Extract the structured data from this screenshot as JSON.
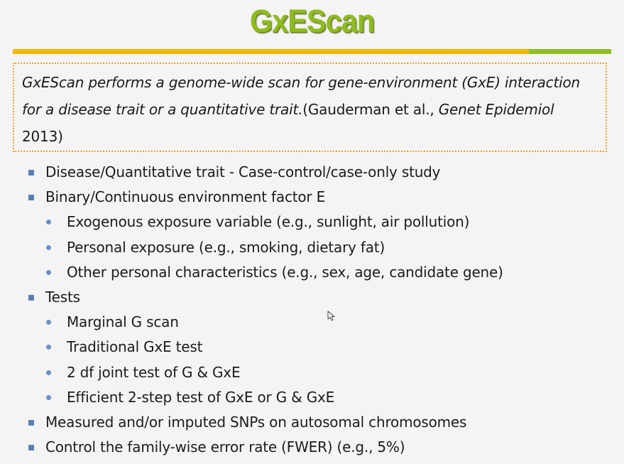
{
  "title": "GxEScan",
  "intro": {
    "italic_part": "GxEScan performs a genome-wide scan for gene-environment (GxE) interaction for a disease trait or a quantitative trait.",
    "citation_pre": "(Gauderman et al., ",
    "citation_journal": "Genet Epidemiol",
    "citation_post": " 2013)"
  },
  "bullets": [
    {
      "level": 1,
      "text": "Disease/Quantitative trait - Case-control/case-only study"
    },
    {
      "level": 1,
      "text": "Binary/Continuous environment factor E"
    },
    {
      "level": 2,
      "text": "Exogenous exposure variable (e.g., sunlight, air pollution)"
    },
    {
      "level": 2,
      "text": "Personal exposure (e.g., smoking, dietary fat)"
    },
    {
      "level": 2,
      "text": "Other personal characteristics (e.g., sex, age, candidate gene)"
    },
    {
      "level": 1,
      "text": "Tests"
    },
    {
      "level": 2,
      "text": "Marginal G scan"
    },
    {
      "level": 2,
      "text": "Traditional GxE test"
    },
    {
      "level": 2,
      "text": "2 df joint test of G & GxE"
    },
    {
      "level": 2,
      "text": "Efficient 2-step test of GxE or G & GxE"
    },
    {
      "level": 1,
      "text": "Measured and/or imputed SNPs on autosomal chromosomes"
    },
    {
      "level": 1,
      "text": "Control the family-wise error rate (FWER) (e.g., 5%)"
    }
  ],
  "colors": {
    "title": "#8fbc1e",
    "rule_orange": "#f5b800",
    "rule_green": "#8dbf23",
    "box_border": "#f0a030",
    "bullet": "#5a7fb5"
  }
}
